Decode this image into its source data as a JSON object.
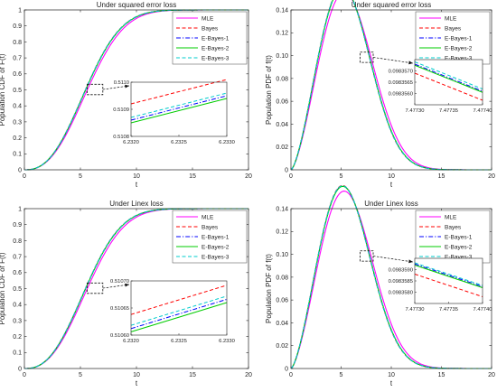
{
  "chart_data": [
    {
      "type": "line",
      "title": "Under squared error loss",
      "xlabel": "t",
      "ylabel": "Population CDF of F(t)",
      "xlim": [
        0,
        20
      ],
      "ylim": [
        0,
        1
      ],
      "xticks": [
        0,
        5,
        10,
        15,
        20
      ],
      "yticks": [
        0,
        0.1,
        0.2,
        0.3,
        0.4,
        0.5,
        0.6,
        0.7,
        0.8,
        0.9,
        1
      ],
      "ytick_labels": [
        "0",
        "0.1",
        "0.2",
        "0.3",
        "0.4",
        "0.5",
        "0.6",
        "0.7",
        "0.8",
        "0.9",
        "1"
      ],
      "legend_position": "top-right",
      "curve": "cdf",
      "series": [
        {
          "name": "MLE",
          "color": "#ff00ff",
          "dash": "solid",
          "scale_a": 6.5
        },
        {
          "name": "Bayes",
          "color": "#ff0000",
          "dash": "dashed",
          "scale_a": 6.3
        },
        {
          "name": "E-Bayes-1",
          "color": "#0000ff",
          "dash": "dashdot",
          "scale_a": 6.32
        },
        {
          "name": "E-Bayes-2",
          "color": "#00cc00",
          "dash": "solid",
          "scale_a": 6.33
        },
        {
          "name": "E-Bayes-3",
          "color": "#00cccc",
          "dash": "dashed",
          "scale_a": 6.31
        }
      ],
      "marker_box": {
        "x": [
          5.6,
          7.0
        ],
        "y": [
          0.47,
          0.535
        ]
      },
      "inset": {
        "xlim": [
          6.232,
          6.233
        ],
        "ylim": [
          0.5108,
          0.511
        ],
        "xticks": [
          6.232,
          6.2325,
          6.233
        ],
        "xtick_labels": [
          "6.2320",
          "6.2325",
          "6.2330"
        ],
        "yticks": [
          0.5108,
          0.5109,
          0.511
        ],
        "ytick_labels": [
          "0.5108",
          "0.5109",
          "0.5110"
        ],
        "lines": [
          {
            "name": "Bayes",
            "y": [
              0.51092,
              0.51101
            ]
          },
          {
            "name": "E-Bayes-3",
            "y": [
              0.51087,
              0.51096
            ]
          },
          {
            "name": "E-Bayes-1",
            "y": [
              0.51086,
              0.51095
            ]
          },
          {
            "name": "E-Bayes-2",
            "y": [
              0.51085,
              0.51094
            ]
          }
        ]
      }
    },
    {
      "type": "line",
      "title": "Under squared error loss",
      "xlabel": "t",
      "ylabel": "Population PDF of f(t)",
      "xlim": [
        0,
        20
      ],
      "ylim": [
        0,
        0.14
      ],
      "xticks": [
        0,
        5,
        10,
        15,
        20
      ],
      "yticks": [
        0,
        0.02,
        0.04,
        0.06,
        0.08,
        0.1,
        0.12,
        0.14
      ],
      "ytick_labels": [
        "0",
        "0.02",
        "0.04",
        "0.06",
        "0.08",
        "0.10",
        "0.12",
        "0.14"
      ],
      "legend_position": "top-right",
      "curve": "pdf",
      "series": [
        {
          "name": "MLE",
          "color": "#ff00ff",
          "dash": "solid",
          "scale_a": 6.5
        },
        {
          "name": "Bayes",
          "color": "#ff0000",
          "dash": "dashed",
          "scale_a": 6.3
        },
        {
          "name": "E-Bayes-1",
          "color": "#0000ff",
          "dash": "dashdot",
          "scale_a": 6.32
        },
        {
          "name": "E-Bayes-2",
          "color": "#00cc00",
          "dash": "solid",
          "scale_a": 6.33
        },
        {
          "name": "E-Bayes-3",
          "color": "#00cccc",
          "dash": "dashed",
          "scale_a": 6.31
        }
      ],
      "marker_box": {
        "x": [
          6.9,
          8.2
        ],
        "y": [
          0.094,
          0.103
        ]
      },
      "inset": {
        "xlim": [
          7.4773,
          7.4774
        ],
        "ylim": [
          0.0983555,
          0.0983575
        ],
        "xticks": [
          7.4773,
          7.47735,
          7.4774
        ],
        "xtick_labels": [
          "7.47730",
          "7.47735",
          "7.47740"
        ],
        "yticks": [
          0.098356,
          0.0983565,
          0.098357
        ],
        "ytick_labels": [
          "0.0983560",
          "0.0983565",
          "0.0983570"
        ],
        "lines": [
          {
            "name": "E-Bayes-3",
            "y": [
              0.0983574,
              0.0983562
            ]
          },
          {
            "name": "E-Bayes-1",
            "y": [
              0.0983573,
              0.0983561
            ]
          },
          {
            "name": "E-Bayes-2",
            "y": [
              0.09835725,
              0.09835605
            ]
          },
          {
            "name": "Bayes",
            "y": [
              0.0983569,
              0.0983557
            ]
          }
        ]
      }
    },
    {
      "type": "line",
      "title": "Under Linex loss",
      "xlabel": "t",
      "ylabel": "Population CDF of F(t)",
      "xlim": [
        0,
        20
      ],
      "ylim": [
        0,
        1
      ],
      "xticks": [
        0,
        5,
        10,
        15,
        20
      ],
      "yticks": [
        0,
        0.1,
        0.2,
        0.3,
        0.4,
        0.5,
        0.6,
        0.7,
        0.8,
        0.9,
        1
      ],
      "ytick_labels": [
        "0",
        "0.1",
        "0.2",
        "0.3",
        "0.4",
        "0.5",
        "0.6",
        "0.7",
        "0.8",
        "0.9",
        "1"
      ],
      "legend_position": "top-right",
      "curve": "cdf",
      "series": [
        {
          "name": "MLE",
          "color": "#ff00ff",
          "dash": "solid",
          "scale_a": 6.5
        },
        {
          "name": "Bayes",
          "color": "#ff0000",
          "dash": "dashed",
          "scale_a": 6.3
        },
        {
          "name": "E-Bayes-1",
          "color": "#0000ff",
          "dash": "dashdot",
          "scale_a": 6.32
        },
        {
          "name": "E-Bayes-2",
          "color": "#00cc00",
          "dash": "solid",
          "scale_a": 6.33
        },
        {
          "name": "E-Bayes-3",
          "color": "#00cccc",
          "dash": "dashed",
          "scale_a": 6.31
        }
      ],
      "marker_box": {
        "x": [
          5.6,
          7.0
        ],
        "y": [
          0.47,
          0.535
        ]
      },
      "inset": {
        "xlim": [
          6.232,
          6.233
        ],
        "ylim": [
          0.5106,
          0.5107
        ],
        "xticks": [
          6.232,
          6.2325,
          6.233
        ],
        "xtick_labels": [
          "6.2320",
          "6.2325",
          "6.2330"
        ],
        "yticks": [
          0.5106,
          0.51065,
          0.5107
        ],
        "ytick_labels": [
          "0.51060",
          "0.51065",
          "0.51070"
        ],
        "lines": [
          {
            "name": "Bayes",
            "y": [
              0.510638,
              0.510692
            ]
          },
          {
            "name": "E-Bayes-3",
            "y": [
              0.510618,
              0.510672
            ]
          },
          {
            "name": "E-Bayes-1",
            "y": [
              0.510612,
              0.510666
            ]
          },
          {
            "name": "E-Bayes-2",
            "y": [
              0.510606,
              0.51066
            ]
          }
        ]
      }
    },
    {
      "type": "line",
      "title": "Under Linex loss",
      "xlabel": "t",
      "ylabel": "Population PDF of f(t)",
      "xlim": [
        0,
        20
      ],
      "ylim": [
        0,
        0.14
      ],
      "xticks": [
        0,
        5,
        10,
        15,
        20
      ],
      "yticks": [
        0,
        0.02,
        0.04,
        0.06,
        0.08,
        0.1,
        0.12,
        0.14
      ],
      "ytick_labels": [
        "0",
        "0.02",
        "0.04",
        "0.06",
        "0.08",
        "0.10",
        "0.12",
        "0.14"
      ],
      "legend_position": "top-right",
      "curve": "pdf",
      "series": [
        {
          "name": "MLE",
          "color": "#ff00ff",
          "dash": "solid",
          "scale_a": 6.5
        },
        {
          "name": "Bayes",
          "color": "#ff0000",
          "dash": "dashed",
          "scale_a": 6.3
        },
        {
          "name": "E-Bayes-1",
          "color": "#0000ff",
          "dash": "dashdot",
          "scale_a": 6.32
        },
        {
          "name": "E-Bayes-2",
          "color": "#00cc00",
          "dash": "solid",
          "scale_a": 6.33
        },
        {
          "name": "E-Bayes-3",
          "color": "#00cccc",
          "dash": "dashed",
          "scale_a": 6.31
        }
      ],
      "marker_box": {
        "x": [
          6.9,
          8.2
        ],
        "y": [
          0.094,
          0.103
        ]
      },
      "inset": {
        "xlim": [
          7.4773,
          7.4774
        ],
        "ylim": [
          0.0983575,
          0.0983595
        ],
        "xticks": [
          7.4773,
          7.47735,
          7.4774
        ],
        "xtick_labels": [
          "7.47730",
          "7.47735",
          "7.47740"
        ],
        "yticks": [
          0.098358,
          0.0983585,
          0.098359
        ],
        "ytick_labels": [
          "0.0983580",
          "0.0983585",
          "0.0983590"
        ],
        "lines": [
          {
            "name": "E-Bayes-3",
            "y": [
              0.0983593,
              0.0983583
            ]
          },
          {
            "name": "E-Bayes-1",
            "y": [
              0.09835925,
              0.09835825
            ]
          },
          {
            "name": "E-Bayes-2",
            "y": [
              0.0983592,
              0.0983582
            ]
          },
          {
            "name": "Bayes",
            "y": [
              0.0983588,
              0.0983578
            ]
          }
        ]
      }
    }
  ]
}
